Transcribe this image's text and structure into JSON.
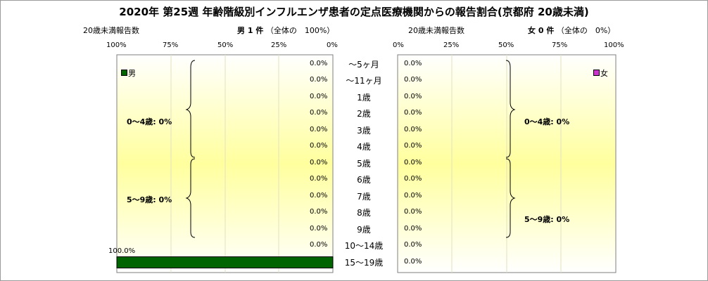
{
  "title": "2020年 第25週 年齢階級別インフルエンザ患者の定点医療機関からの報告割合(京都府 20歳未満)",
  "male_panel": {
    "left_label": "20歳未満報告数",
    "header": "男 1 件",
    "header_note": "（全体の　100%）",
    "legend": "男",
    "color": "#006400",
    "groups": [
      "0～4歳: 0%",
      "5～9歳: 0%"
    ],
    "top_value_label": "100.0%"
  },
  "female_panel": {
    "left_label": "20歳未満報告数",
    "header": "女 0 件",
    "header_note": "（全体の　0%）",
    "legend": "女",
    "color": "#cc33cc",
    "groups": [
      "0～4歳: 0%",
      "5～9歳: 0%"
    ]
  },
  "male_ticks": [
    "100%",
    "75%",
    "50%",
    "25%",
    "0%"
  ],
  "female_ticks": [
    "0%",
    "25%",
    "50%",
    "75%",
    "100%"
  ],
  "chart_data": {
    "type": "bar",
    "title": "2020年 第25週 年齢階級別インフルエンザ患者の定点医療機関からの報告割合(京都府 20歳未満)",
    "categories": [
      "～5ヶ月",
      "～11ヶ月",
      "1歳",
      "2歳",
      "3歳",
      "4歳",
      "5歳",
      "6歳",
      "7歳",
      "8歳",
      "9歳",
      "10～14歳",
      "15～19歳"
    ],
    "series": [
      {
        "name": "男",
        "values": [
          0,
          0,
          0,
          0,
          0,
          0,
          0,
          0,
          0,
          0,
          0,
          0,
          100
        ],
        "labels": [
          "0.0%",
          "0.0%",
          "0.0%",
          "0.0%",
          "0.0%",
          "0.0%",
          "0.0%",
          "0.0%",
          "0.0%",
          "0.0%",
          "0.0%",
          "0.0%",
          "100.0%"
        ]
      },
      {
        "name": "女",
        "values": [
          0,
          0,
          0,
          0,
          0,
          0,
          0,
          0,
          0,
          0,
          0,
          0,
          0
        ],
        "labels": [
          "0.0%",
          "0.0%",
          "0.0%",
          "0.0%",
          "0.0%",
          "0.0%",
          "0.0%",
          "0.0%",
          "0.0%",
          "0.0%",
          "0.0%",
          "0.0%",
          "0.0%"
        ]
      }
    ],
    "xlim": [
      0,
      100
    ],
    "grid": true,
    "legend_position": "top"
  }
}
